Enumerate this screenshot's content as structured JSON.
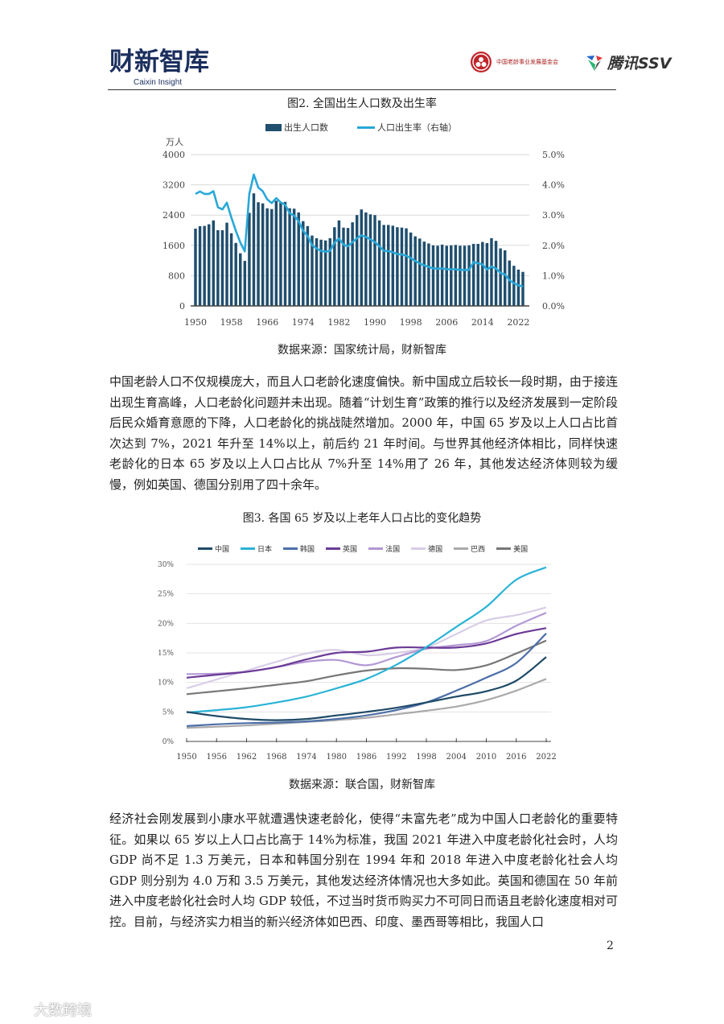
{
  "header": {
    "logo_cn": "财新智库",
    "logo_en": "Caixin Insight",
    "partner1_text": "中国老龄事业发展基金会",
    "partner2_text": "腾讯SSV"
  },
  "figure2": {
    "title": "图2. 全国出生人口数及出生率",
    "source": "数据来源：国家统计局，财新智库"
  },
  "paragraph1": "中国老龄人口不仅规模庞大，而且人口老龄化速度偏快。新中国成立后较长一段时期，由于接连出现生育高峰，人口老龄化问题并未出现。随着“计划生育”政策的推行以及经济发展到一定阶段后民众婚育意愿的下降，人口老龄化的挑战陡然增加。2000 年，中国 65 岁及以上人口占比首次达到 7%，2021 年升至 14%以上，前后约 21 年时间。与世界其他经济体相比，同样快速老龄化的日本 65 岁及以上人口占比从 7%升至 14%用了 26 年，其他发达经济体则较为缓慢，例如英国、德国分别用了四十余年。",
  "figure3": {
    "title": "图3. 各国 65 岁及以上老年人口占比的变化趋势",
    "source": "数据来源：联合国，财新智库"
  },
  "paragraph2": "经济社会刚发展到小康水平就遭遇快速老龄化，使得“未富先老”成为中国人口老龄化的重要特征。如果以 65 岁以上人口占比高于 14%为标准，我国 2021 年进入中度老龄化社会时，人均 GDP 尚不足 1.3 万美元，日本和韩国分别在 1994 年和 2018 年进入中度老龄化社会人均 GDP 则分别为 4.0 万和 3.5 万美元，其他发达经济体情况也大多如此。英国和德国在 50 年前进入中度老龄化社会时人均 GDP 较低，不过当时货币购买力不可同日而语且老龄化速度相对可控。目前，与经济实力相当的新兴经济体如巴西、印度、墨西哥等相比，我国人口",
  "page_number": "2",
  "watermark": "大数跨境",
  "chart_data": [
    {
      "type": "bar+line",
      "title": "图2. 全国出生人口数及出生率",
      "ylabel": "万人",
      "ylabel_right": "人口出生率（右轴）",
      "ylim": [
        0,
        4000
      ],
      "ylim_right": [
        0,
        5.0
      ],
      "yticks": [
        "0",
        "800",
        "1600",
        "2400",
        "3200",
        "4000"
      ],
      "yticks_right": [
        "0.0%",
        "1.0%",
        "2.0%",
        "3.0%",
        "4.0%",
        "5.0%"
      ],
      "xticks": [
        "1950",
        "1958",
        "1966",
        "1974",
        "1982",
        "1990",
        "1998",
        "2006",
        "2014",
        "2022"
      ],
      "legend": [
        "出生人口数",
        "人口出生率（右轴）"
      ],
      "legend_position": "top",
      "grid": true,
      "colors": {
        "bars": "#1f4e6e",
        "line": "#29a8d8"
      },
      "x": [
        1950,
        1951,
        1952,
        1953,
        1954,
        1955,
        1956,
        1957,
        1958,
        1959,
        1960,
        1961,
        1962,
        1963,
        1964,
        1965,
        1966,
        1967,
        1968,
        1969,
        1970,
        1971,
        1972,
        1973,
        1974,
        1975,
        1976,
        1977,
        1978,
        1979,
        1980,
        1981,
        1982,
        1983,
        1984,
        1985,
        1986,
        1987,
        1988,
        1989,
        1990,
        1991,
        1992,
        1993,
        1994,
        1995,
        1996,
        1997,
        1998,
        1999,
        2000,
        2001,
        2002,
        2003,
        2004,
        2005,
        2006,
        2007,
        2008,
        2009,
        2010,
        2011,
        2012,
        2013,
        2014,
        2015,
        2016,
        2017,
        2018,
        2019,
        2020,
        2021,
        2022,
        2023
      ],
      "series": [
        {
          "name": "出生人口数",
          "axis": "left",
          "values": [
            2042,
            2106,
            2114,
            2158,
            2260,
            2002,
            2000,
            2200,
            1920,
            1665,
            1391,
            1190,
            2460,
            2975,
            2740,
            2710,
            2580,
            2560,
            2780,
            2730,
            2750,
            2580,
            2570,
            2470,
            2240,
            2110,
            1860,
            1790,
            1750,
            1730,
            1790,
            2080,
            2260,
            2070,
            2060,
            2210,
            2400,
            2550,
            2470,
            2420,
            2400,
            2260,
            2140,
            2140,
            2120,
            2080,
            2070,
            2050,
            1940,
            1840,
            1780,
            1700,
            1650,
            1600,
            1590,
            1620,
            1590,
            1600,
            1610,
            1590,
            1590,
            1600,
            1640,
            1640,
            1690,
            1660,
            1790,
            1720,
            1520,
            1470,
            1200,
            1060,
            960,
            900
          ]
        },
        {
          "name": "人口出生率（右轴）",
          "axis": "right",
          "values": [
            3.7,
            3.78,
            3.7,
            3.7,
            3.79,
            3.26,
            3.19,
            3.41,
            2.92,
            2.48,
            2.09,
            1.8,
            3.7,
            4.34,
            3.91,
            3.79,
            3.52,
            3.4,
            3.56,
            3.42,
            3.34,
            3.06,
            2.98,
            2.8,
            2.48,
            2.31,
            2.0,
            1.9,
            1.82,
            1.79,
            1.82,
            2.09,
            2.23,
            2.02,
            1.97,
            2.1,
            2.24,
            2.33,
            2.28,
            2.2,
            2.11,
            1.97,
            1.82,
            1.81,
            1.77,
            1.71,
            1.7,
            1.66,
            1.58,
            1.49,
            1.4,
            1.34,
            1.29,
            1.24,
            1.23,
            1.24,
            1.21,
            1.21,
            1.21,
            1.19,
            1.19,
            1.19,
            1.45,
            1.41,
            1.37,
            1.2,
            1.3,
            1.24,
            1.09,
            1.04,
            0.85,
            0.75,
            0.68,
            0.64
          ]
        }
      ]
    },
    {
      "type": "line",
      "title": "图3. 各国 65 岁及以上老年人口占比的变化趋势",
      "xlabel": "",
      "ylabel": "",
      "ylim": [
        0,
        30
      ],
      "yticks": [
        "0%",
        "5%",
        "10%",
        "15%",
        "20%",
        "25%",
        "30%"
      ],
      "xticks": [
        "1950",
        "1956",
        "1962",
        "1968",
        "1974",
        "1980",
        "1986",
        "1992",
        "1998",
        "2004",
        "2010",
        "2016",
        "2022"
      ],
      "legend_position": "top",
      "grid": true,
      "x": [
        1950,
        1956,
        1962,
        1968,
        1974,
        1980,
        1986,
        1992,
        1998,
        2004,
        2010,
        2016,
        2022
      ],
      "series": [
        {
          "name": "中国",
          "color": "#1e4a68",
          "values": [
            5.0,
            4.3,
            3.8,
            3.6,
            3.8,
            4.4,
            5.0,
            5.7,
            6.6,
            7.6,
            8.5,
            10.3,
            14.3
          ]
        },
        {
          "name": "日本",
          "color": "#2ab3d6",
          "values": [
            4.9,
            5.3,
            5.8,
            6.6,
            7.6,
            9.0,
            10.6,
            13.0,
            16.0,
            19.4,
            22.8,
            27.4,
            29.5
          ]
        },
        {
          "name": "韩国",
          "color": "#4c6fa8",
          "values": [
            2.6,
            2.9,
            3.1,
            3.2,
            3.4,
            3.8,
            4.4,
            5.3,
            6.6,
            8.6,
            10.8,
            13.3,
            18.3
          ]
        },
        {
          "name": "英国",
          "color": "#6b3a96",
          "values": [
            10.8,
            11.3,
            11.8,
            12.6,
            13.9,
            15.0,
            15.2,
            15.9,
            15.9,
            15.9,
            16.6,
            18.2,
            19.2
          ]
        },
        {
          "name": "法国",
          "color": "#b398d4",
          "values": [
            11.4,
            11.5,
            11.8,
            12.6,
            13.5,
            13.8,
            12.9,
            14.3,
            15.7,
            16.3,
            17.0,
            19.6,
            21.8
          ]
        },
        {
          "name": "德国",
          "color": "#d8cde6",
          "values": [
            9.0,
            10.5,
            12.0,
            13.5,
            14.9,
            15.5,
            14.6,
            15.0,
            15.9,
            18.2,
            20.5,
            21.4,
            22.7
          ]
        },
        {
          "name": "巴西",
          "color": "#aaaaaa",
          "values": [
            2.3,
            2.5,
            2.7,
            3.0,
            3.3,
            3.6,
            4.0,
            4.6,
            5.2,
            5.9,
            7.0,
            8.6,
            10.6
          ]
        },
        {
          "name": "美国",
          "color": "#777777",
          "values": [
            8.0,
            8.5,
            9.0,
            9.6,
            10.2,
            11.2,
            12.0,
            12.4,
            12.3,
            12.1,
            12.9,
            14.9,
            17.1
          ]
        }
      ]
    }
  ]
}
